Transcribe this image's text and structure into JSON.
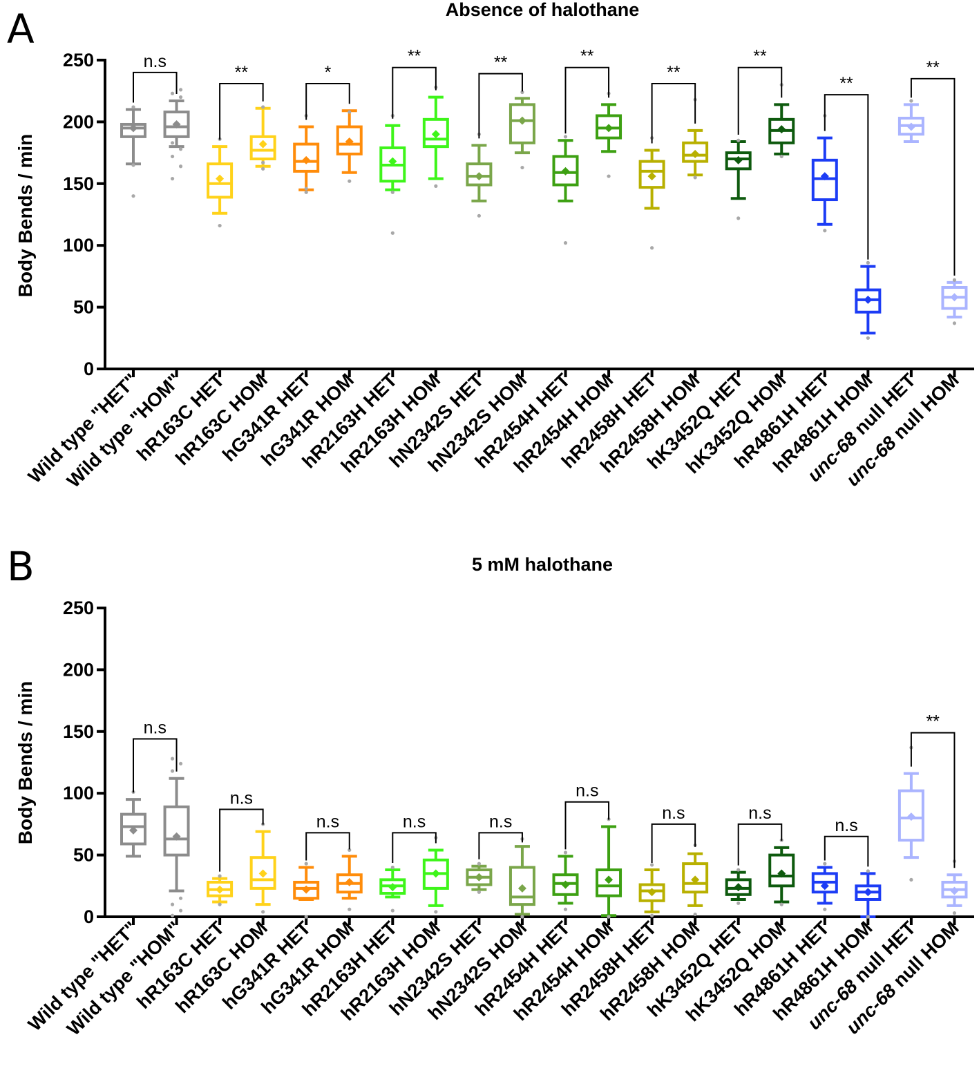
{
  "figure": {
    "panel_labels": [
      "A",
      "B"
    ]
  },
  "chart_data": [
    {
      "type": "box",
      "panel": "A",
      "title": "Absence of halothane",
      "ylabel": "Body Bends / min",
      "ylim": [
        0,
        250
      ],
      "yticks": [
        0,
        50,
        100,
        150,
        200,
        250
      ],
      "categories": [
        {
          "parts": [
            "Wild type \"HET\""
          ],
          "italic": false
        },
        {
          "parts": [
            "Wild type \"HOM\""
          ],
          "italic": false
        },
        {
          "parts": [
            "hR163C HET"
          ],
          "italic": false
        },
        {
          "parts": [
            "hR163C HOM"
          ],
          "italic": false
        },
        {
          "parts": [
            "hG341R HET"
          ],
          "italic": false
        },
        {
          "parts": [
            "hG341R HOM"
          ],
          "italic": false
        },
        {
          "parts": [
            "hR2163H HET"
          ],
          "italic": false
        },
        {
          "parts": [
            "hR2163H HOM"
          ],
          "italic": false
        },
        {
          "parts": [
            "hN2342S HET"
          ],
          "italic": false
        },
        {
          "parts": [
            "hN2342S HOM"
          ],
          "italic": false
        },
        {
          "parts": [
            "hR2454H HET"
          ],
          "italic": false
        },
        {
          "parts": [
            "hR2454H HOM"
          ],
          "italic": false
        },
        {
          "parts": [
            "hR2458H HET"
          ],
          "italic": false
        },
        {
          "parts": [
            "hR2458H HOM"
          ],
          "italic": false
        },
        {
          "parts": [
            "hK3452Q HET"
          ],
          "italic": false
        },
        {
          "parts": [
            "hK3452Q HOM"
          ],
          "italic": false
        },
        {
          "parts": [
            "hR4861H HET"
          ],
          "italic": false
        },
        {
          "parts": [
            "hR4861H HOM"
          ],
          "italic": false
        },
        {
          "parts": [
            "unc-68",
            " null HET"
          ],
          "italic": true
        },
        {
          "parts": [
            "unc-68",
            " null HOM"
          ],
          "italic": true
        }
      ],
      "colors": [
        "#8c8c8c",
        "#8c8c8c",
        "#ffd21a",
        "#ffd21a",
        "#ff8c0a",
        "#ff8c0a",
        "#3ef51a",
        "#3ef51a",
        "#7aa64a",
        "#7aa64a",
        "#3da012",
        "#3da012",
        "#b8b000",
        "#b8b000",
        "#0e5a0e",
        "#0e5a0e",
        "#1c3cf5",
        "#1c3cf5",
        "#aab4ff",
        "#aab4ff"
      ],
      "boxes": [
        {
          "min": 166,
          "q1": 188,
          "median": 195,
          "q3": 198,
          "max": 210,
          "mean": 195,
          "outliers": [
            140,
            165,
            212
          ]
        },
        {
          "min": 180,
          "q1": 188,
          "median": 196,
          "q3": 208,
          "max": 217,
          "mean": 198,
          "outliers": [
            154,
            164,
            172,
            178,
            183,
            220,
            223,
            226
          ]
        },
        {
          "min": 126,
          "q1": 139,
          "median": 150,
          "q3": 166,
          "max": 180,
          "mean": 154,
          "outliers": [
            116,
            186
          ]
        },
        {
          "min": 164,
          "q1": 170,
          "median": 177,
          "q3": 188,
          "max": 211,
          "mean": 182,
          "outliers": [
            162,
            167,
            212
          ]
        },
        {
          "min": 145,
          "q1": 160,
          "median": 168,
          "q3": 182,
          "max": 196,
          "mean": 169,
          "outliers": [
            143,
            146,
            205
          ]
        },
        {
          "min": 159,
          "q1": 174,
          "median": 182,
          "q3": 196,
          "max": 209,
          "mean": 184,
          "outliers": [
            152,
            208
          ]
        },
        {
          "min": 145,
          "q1": 152,
          "median": 165,
          "q3": 179,
          "max": 197,
          "mean": 168,
          "outliers": [
            110,
            143,
            205
          ]
        },
        {
          "min": 154,
          "q1": 180,
          "median": 186,
          "q3": 202,
          "max": 220,
          "mean": 190,
          "outliers": [
            148,
            228
          ]
        },
        {
          "min": 136,
          "q1": 149,
          "median": 156,
          "q3": 166,
          "max": 181,
          "mean": 156,
          "outliers": [
            124,
            190
          ]
        },
        {
          "min": 175,
          "q1": 183,
          "median": 201,
          "q3": 214,
          "max": 219,
          "mean": 201,
          "outliers": [
            163,
            224
          ]
        },
        {
          "min": 136,
          "q1": 149,
          "median": 159,
          "q3": 172,
          "max": 185,
          "mean": 160,
          "outliers": [
            102,
            188
          ]
        },
        {
          "min": 176,
          "q1": 187,
          "median": 195,
          "q3": 205,
          "max": 214,
          "mean": 195,
          "outliers": [
            156,
            223
          ]
        },
        {
          "min": 130,
          "q1": 147,
          "median": 160,
          "q3": 168,
          "max": 177,
          "mean": 156,
          "outliers": [
            98,
            187
          ]
        },
        {
          "min": 157,
          "q1": 168,
          "median": 173,
          "q3": 183,
          "max": 193,
          "mean": 174,
          "outliers": [
            155,
            218
          ]
        },
        {
          "min": 138,
          "q1": 162,
          "median": 170,
          "q3": 175,
          "max": 184,
          "mean": 169,
          "outliers": [
            122,
            185
          ]
        },
        {
          "min": 174,
          "q1": 183,
          "median": 193,
          "q3": 202,
          "max": 214,
          "mean": 194,
          "outliers": [
            172,
            230
          ]
        },
        {
          "min": 117,
          "q1": 137,
          "median": 154,
          "q3": 169,
          "max": 187,
          "mean": 156,
          "outliers": [
            112,
            205
          ]
        },
        {
          "min": 29,
          "q1": 46,
          "median": 56,
          "q3": 64,
          "max": 83,
          "mean": 56,
          "outliers": [
            25,
            86
          ]
        },
        {
          "min": 184,
          "q1": 190,
          "median": 197,
          "q3": 203,
          "max": 214,
          "mean": 196,
          "outliers": [
            217
          ]
        },
        {
          "min": 42,
          "q1": 49,
          "median": 58,
          "q3": 66,
          "max": 70,
          "mean": 58,
          "outliers": [
            37,
            72
          ]
        }
      ],
      "comparisons": [
        {
          "from": 0,
          "to": 1,
          "label": "n.s",
          "y": 240
        },
        {
          "from": 2,
          "to": 3,
          "label": "**",
          "y": 231
        },
        {
          "from": 4,
          "to": 5,
          "label": "*",
          "y": 231
        },
        {
          "from": 6,
          "to": 7,
          "label": "**",
          "y": 244
        },
        {
          "from": 8,
          "to": 9,
          "label": "**",
          "y": 239
        },
        {
          "from": 10,
          "to": 11,
          "label": "**",
          "y": 244
        },
        {
          "from": 12,
          "to": 13,
          "label": "**",
          "y": 231
        },
        {
          "from": 14,
          "to": 15,
          "label": "**",
          "y": 244
        },
        {
          "from": 16,
          "to": 17,
          "label": "**",
          "y": 222
        },
        {
          "from": 18,
          "to": 19,
          "label": "**",
          "y": 235
        }
      ]
    },
    {
      "type": "box",
      "panel": "B",
      "title": "5 mM halothane",
      "ylabel": "Body Bends / min",
      "ylim": [
        0,
        250
      ],
      "yticks": [
        0,
        50,
        100,
        150,
        200,
        250
      ],
      "categories": [
        {
          "parts": [
            "Wild type \"HET\""
          ],
          "italic": false
        },
        {
          "parts": [
            "Wild type \"HOM\""
          ],
          "italic": false
        },
        {
          "parts": [
            "hR163C HET"
          ],
          "italic": false
        },
        {
          "parts": [
            "hR163C HOM"
          ],
          "italic": false
        },
        {
          "parts": [
            "hG341R HET"
          ],
          "italic": false
        },
        {
          "parts": [
            "hG341R HOM"
          ],
          "italic": false
        },
        {
          "parts": [
            "hR2163H HET"
          ],
          "italic": false
        },
        {
          "parts": [
            "hR2163H HOM"
          ],
          "italic": false
        },
        {
          "parts": [
            "hN2342S HET"
          ],
          "italic": false
        },
        {
          "parts": [
            "hN2342S HOM"
          ],
          "italic": false
        },
        {
          "parts": [
            "hR2454H HET"
          ],
          "italic": false
        },
        {
          "parts": [
            "hR2454H HOM"
          ],
          "italic": false
        },
        {
          "parts": [
            "hR2458H HET"
          ],
          "italic": false
        },
        {
          "parts": [
            "hR2458H HOM"
          ],
          "italic": false
        },
        {
          "parts": [
            "hK3452Q HET"
          ],
          "italic": false
        },
        {
          "parts": [
            "hK3452Q HOM"
          ],
          "italic": false
        },
        {
          "parts": [
            "hR4861H HET"
          ],
          "italic": false
        },
        {
          "parts": [
            "hR4861H HOM"
          ],
          "italic": false
        },
        {
          "parts": [
            "unc-68",
            " null HET"
          ],
          "italic": true
        },
        {
          "parts": [
            "unc-68",
            " null HOM"
          ],
          "italic": true
        }
      ],
      "colors": [
        "#8c8c8c",
        "#8c8c8c",
        "#ffd21a",
        "#ffd21a",
        "#ff8c0a",
        "#ff8c0a",
        "#3ef51a",
        "#3ef51a",
        "#7aa64a",
        "#7aa64a",
        "#3da012",
        "#3da012",
        "#b8b000",
        "#b8b000",
        "#0e5a0e",
        "#0e5a0e",
        "#1c3cf5",
        "#1c3cf5",
        "#aab4ff",
        "#aab4ff"
      ],
      "boxes": [
        {
          "min": 49,
          "q1": 59,
          "median": 73,
          "q3": 83,
          "max": 95,
          "mean": 70,
          "outliers": [
            101
          ]
        },
        {
          "min": 21,
          "q1": 50,
          "median": 63,
          "q3": 89,
          "max": 112,
          "mean": 65,
          "outliers": [
            1,
            5,
            10,
            15,
            118,
            124,
            128
          ]
        },
        {
          "min": 12,
          "q1": 17,
          "median": 22,
          "q3": 28,
          "max": 31,
          "mean": 22,
          "outliers": [
            10,
            33
          ]
        },
        {
          "min": 10,
          "q1": 23,
          "median": 30,
          "q3": 48,
          "max": 69,
          "mean": 35,
          "outliers": [
            4,
            75
          ]
        },
        {
          "min": 14,
          "q1": 15,
          "median": 23,
          "q3": 28,
          "max": 40,
          "mean": 22,
          "outliers": [
            0,
            43
          ]
        },
        {
          "min": 15,
          "q1": 20,
          "median": 27,
          "q3": 34,
          "max": 49,
          "mean": 28,
          "outliers": [
            6,
            54
          ]
        },
        {
          "min": 16,
          "q1": 19,
          "median": 25,
          "q3": 30,
          "max": 38,
          "mean": 24,
          "outliers": [
            5,
            40
          ]
        },
        {
          "min": 9,
          "q1": 23,
          "median": 35,
          "q3": 46,
          "max": 54,
          "mean": 35,
          "outliers": [
            4,
            64
          ]
        },
        {
          "min": 22,
          "q1": 26,
          "median": 32,
          "q3": 38,
          "max": 41,
          "mean": 32,
          "outliers": [
            20,
            43
          ]
        },
        {
          "min": 2,
          "q1": 10,
          "median": 16,
          "q3": 40,
          "max": 57,
          "mean": 23,
          "outliers": [
            0,
            63
          ]
        },
        {
          "min": 11,
          "q1": 18,
          "median": 27,
          "q3": 34,
          "max": 49,
          "mean": 26,
          "outliers": [
            6,
            52
          ]
        },
        {
          "min": 1,
          "q1": 17,
          "median": 25,
          "q3": 38,
          "max": 73,
          "mean": 30,
          "outliers": [
            0,
            79
          ]
        },
        {
          "min": 4,
          "q1": 13,
          "median": 21,
          "q3": 26,
          "max": 38,
          "mean": 20,
          "outliers": [
            1,
            42
          ]
        },
        {
          "min": 9,
          "q1": 20,
          "median": 27,
          "q3": 43,
          "max": 51,
          "mean": 30,
          "outliers": [
            2,
            58
          ]
        },
        {
          "min": 14,
          "q1": 18,
          "median": 23,
          "q3": 30,
          "max": 36,
          "mean": 24,
          "outliers": [
            11,
            38
          ]
        },
        {
          "min": 12,
          "q1": 25,
          "median": 33,
          "q3": 50,
          "max": 56,
          "mean": 35,
          "outliers": [
            10,
            62
          ]
        },
        {
          "min": 11,
          "q1": 20,
          "median": 28,
          "q3": 35,
          "max": 40,
          "mean": 25,
          "outliers": [
            6,
            43
          ]
        },
        {
          "min": 0,
          "q1": 14,
          "median": 20,
          "q3": 25,
          "max": 35,
          "mean": 20,
          "outliers": [
            0,
            37
          ]
        },
        {
          "min": 48,
          "q1": 62,
          "median": 80,
          "q3": 102,
          "max": 116,
          "mean": 81,
          "outliers": [
            30,
            137
          ]
        },
        {
          "min": 9,
          "q1": 16,
          "median": 22,
          "q3": 28,
          "max": 34,
          "mean": 21,
          "outliers": [
            3,
            45
          ]
        }
      ],
      "comparisons": [
        {
          "from": 0,
          "to": 1,
          "label": "n.s",
          "y": 144
        },
        {
          "from": 2,
          "to": 3,
          "label": "n.s",
          "y": 87
        },
        {
          "from": 4,
          "to": 5,
          "label": "n.s",
          "y": 68
        },
        {
          "from": 6,
          "to": 7,
          "label": "n.s",
          "y": 68
        },
        {
          "from": 8,
          "to": 9,
          "label": "n.s",
          "y": 68
        },
        {
          "from": 10,
          "to": 11,
          "label": "n.s",
          "y": 93
        },
        {
          "from": 12,
          "to": 13,
          "label": "n.s",
          "y": 75
        },
        {
          "from": 14,
          "to": 15,
          "label": "n.s",
          "y": 75
        },
        {
          "from": 16,
          "to": 17,
          "label": "n.s",
          "y": 65
        },
        {
          "from": 18,
          "to": 19,
          "label": "**",
          "y": 149
        }
      ]
    }
  ]
}
